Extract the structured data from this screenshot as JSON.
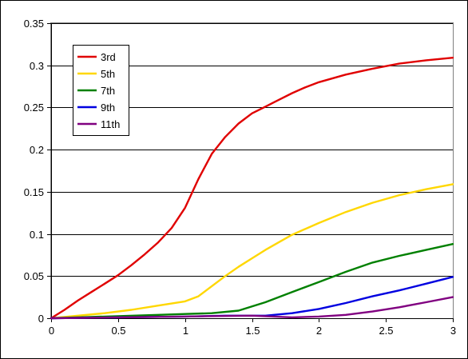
{
  "chart_data": {
    "type": "line",
    "title": "",
    "xlabel": "",
    "ylabel": "",
    "xlim": [
      0,
      3
    ],
    "ylim": [
      0,
      0.35
    ],
    "x_ticks": [
      "0",
      "0.5",
      "1",
      "1.5",
      "2",
      "2.5",
      "3"
    ],
    "y_ticks": [
      "0",
      "0.05",
      "0.1",
      "0.15",
      "0.2",
      "0.25",
      "0.3",
      "0.35"
    ],
    "grid": "horizontal",
    "legend_position": "top-left",
    "series": [
      {
        "name": "3rd",
        "color": "#E00000",
        "points": [
          [
            0,
            0
          ],
          [
            0.1,
            0.01
          ],
          [
            0.2,
            0.021
          ],
          [
            0.3,
            0.031
          ],
          [
            0.4,
            0.041
          ],
          [
            0.5,
            0.051
          ],
          [
            0.6,
            0.063
          ],
          [
            0.7,
            0.076
          ],
          [
            0.8,
            0.09
          ],
          [
            0.9,
            0.107
          ],
          [
            1.0,
            0.131
          ],
          [
            1.1,
            0.165
          ],
          [
            1.2,
            0.195
          ],
          [
            1.3,
            0.215
          ],
          [
            1.4,
            0.231
          ],
          [
            1.5,
            0.243
          ],
          [
            1.6,
            0.251
          ],
          [
            1.7,
            0.259
          ],
          [
            1.8,
            0.267
          ],
          [
            1.9,
            0.274
          ],
          [
            2.0,
            0.28
          ],
          [
            2.2,
            0.289
          ],
          [
            2.4,
            0.296
          ],
          [
            2.6,
            0.302
          ],
          [
            2.8,
            0.306
          ],
          [
            3.0,
            0.309
          ]
        ]
      },
      {
        "name": "5th",
        "color": "#FFD700",
        "points": [
          [
            0,
            0
          ],
          [
            0.2,
            0.003
          ],
          [
            0.4,
            0.006
          ],
          [
            0.6,
            0.01
          ],
          [
            0.8,
            0.015
          ],
          [
            1.0,
            0.02
          ],
          [
            1.1,
            0.026
          ],
          [
            1.2,
            0.038
          ],
          [
            1.3,
            0.05
          ],
          [
            1.4,
            0.061
          ],
          [
            1.5,
            0.071
          ],
          [
            1.6,
            0.081
          ],
          [
            1.7,
            0.09
          ],
          [
            1.8,
            0.099
          ],
          [
            2.0,
            0.113
          ],
          [
            2.2,
            0.126
          ],
          [
            2.4,
            0.137
          ],
          [
            2.6,
            0.146
          ],
          [
            2.8,
            0.153
          ],
          [
            3.0,
            0.159
          ]
        ]
      },
      {
        "name": "7th",
        "color": "#008000",
        "points": [
          [
            0,
            0
          ],
          [
            0.4,
            0.002
          ],
          [
            0.8,
            0.004
          ],
          [
            1.0,
            0.005
          ],
          [
            1.2,
            0.006
          ],
          [
            1.4,
            0.009
          ],
          [
            1.6,
            0.019
          ],
          [
            1.8,
            0.031
          ],
          [
            2.0,
            0.043
          ],
          [
            2.2,
            0.055
          ],
          [
            2.4,
            0.066
          ],
          [
            2.6,
            0.074
          ],
          [
            2.8,
            0.081
          ],
          [
            3.0,
            0.088
          ]
        ]
      },
      {
        "name": "9th",
        "color": "#0000E0",
        "points": [
          [
            0,
            0
          ],
          [
            0.5,
            0.001
          ],
          [
            1.0,
            0.002
          ],
          [
            1.3,
            0.003
          ],
          [
            1.6,
            0.003
          ],
          [
            1.8,
            0.006
          ],
          [
            2.0,
            0.011
          ],
          [
            2.2,
            0.018
          ],
          [
            2.4,
            0.026
          ],
          [
            2.6,
            0.033
          ],
          [
            2.8,
            0.041
          ],
          [
            3.0,
            0.049
          ]
        ]
      },
      {
        "name": "11th",
        "color": "#800080",
        "points": [
          [
            0,
            0
          ],
          [
            1.0,
            0.002
          ],
          [
            1.5,
            0.003
          ],
          [
            1.8,
            0.001
          ],
          [
            2.0,
            0.002
          ],
          [
            2.2,
            0.004
          ],
          [
            2.4,
            0.008
          ],
          [
            2.6,
            0.013
          ],
          [
            2.8,
            0.019
          ],
          [
            3.0,
            0.025
          ]
        ]
      }
    ]
  }
}
